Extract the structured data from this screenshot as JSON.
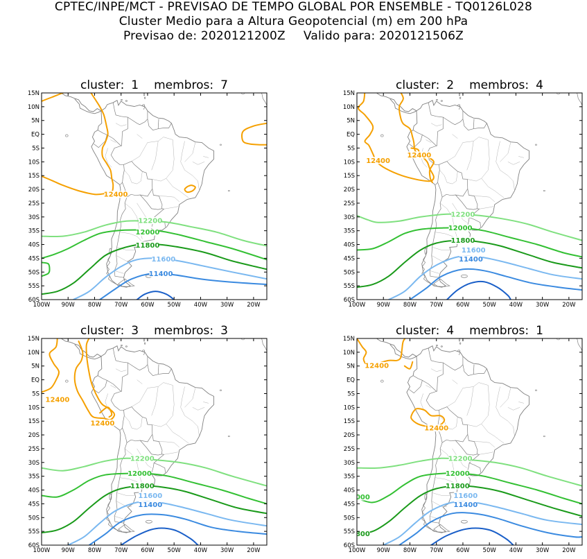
{
  "header": {
    "line1": "CPTEC/INPE/MCT - PREVISAO DE TEMPO GLOBAL POR ENSEMBLE - TQ0126L028",
    "line2": "Cluster Medio para a Altura Geopotencial (m) em 200 hPa",
    "line3_a": "Previsao de: 2020121200Z",
    "line3_b": "Valido para: 2020121506Z"
  },
  "axes": {
    "lat_ticks": [
      "15N",
      "10N",
      "5N",
      "EQ",
      "5S",
      "10S",
      "15S",
      "20S",
      "25S",
      "30S",
      "35S",
      "40S",
      "45S",
      "50S",
      "55S",
      "60S"
    ],
    "lon_ticks": [
      "100W",
      "90W",
      "80W",
      "70W",
      "60W",
      "50W",
      "40W",
      "30W",
      "20W"
    ]
  },
  "colors": {
    "c12400": "#f5a000",
    "c12200": "#7fe07f",
    "c12000": "#33c033",
    "c11800": "#1a9a1a",
    "c11600": "#7ab8f0",
    "c11400": "#3a8ae0",
    "c11200": "#1a5fc8",
    "coast": "#808080"
  },
  "panels": [
    {
      "cluster_label": "cluster:",
      "cluster": "1",
      "membros_label": "membros:",
      "membros": "7",
      "labels": {
        "l12400": "12400",
        "l12200": "12200",
        "l12000": "12000",
        "l11800": "11800",
        "l11600": "11600",
        "l11400": "11400"
      }
    },
    {
      "cluster_label": "cluster:",
      "cluster": "2",
      "membros_label": "membros:",
      "membros": "4",
      "labels": {
        "l12400": "12400",
        "l12400b": "12400",
        "l12200": "12200",
        "l12000": "12000",
        "l11800": "11800",
        "l11600": "11600",
        "l11400": "11400"
      }
    },
    {
      "cluster_label": "cluster:",
      "cluster": "3",
      "membros_label": "membros:",
      "membros": "3",
      "labels": {
        "l12400": "12400",
        "l12400b": "12400",
        "l12200": "12200",
        "l12000": "12000",
        "l11800": "11800",
        "l11600": "11600",
        "l11400": "11400"
      }
    },
    {
      "cluster_label": "cluster:",
      "cluster": "4",
      "membros_label": "membros:",
      "membros": "1",
      "labels": {
        "l12400": "12400",
        "l12400b": "12400",
        "l12200": "12200",
        "l12000": "12000",
        "l11800": "11800",
        "l11600": "11600",
        "l11400": "11400",
        "l12000edge": "000",
        "l11800edge": "800"
      }
    }
  ]
}
